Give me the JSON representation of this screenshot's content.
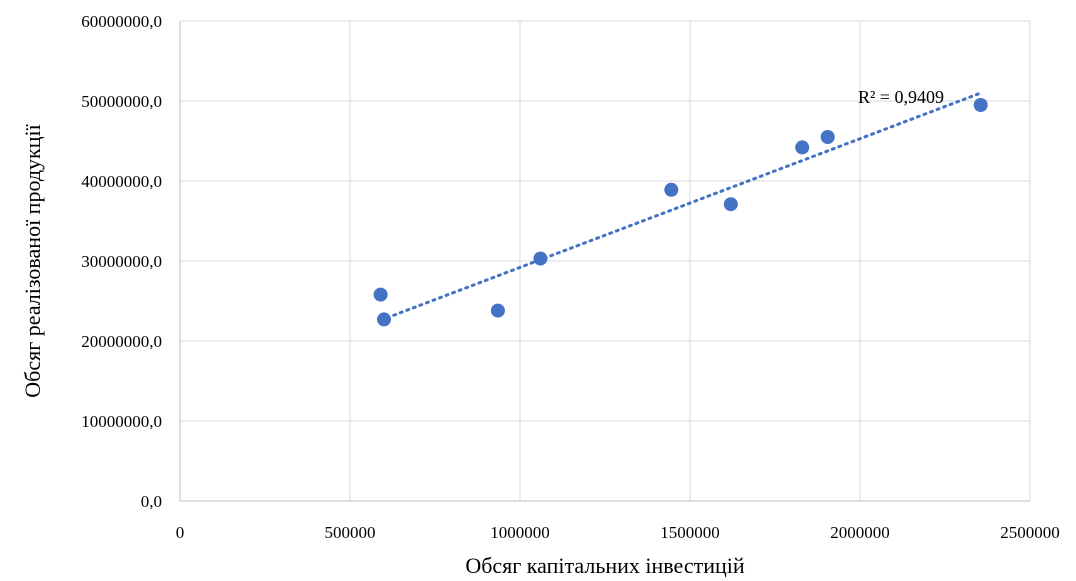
{
  "chart_data": {
    "type": "scatter",
    "xlabel": "Обсяг капітальних інвестицій",
    "ylabel": "Обсяг реалізованої продукції",
    "xlim": [
      0,
      2500000
    ],
    "ylim": [
      0,
      60000000
    ],
    "x_ticks": [
      0,
      500000,
      1000000,
      1500000,
      2000000,
      2500000
    ],
    "x_tick_labels": [
      "0",
      "500000",
      "1000000",
      "1500000",
      "2000000",
      "2500000"
    ],
    "y_ticks": [
      0,
      10000000,
      20000000,
      30000000,
      40000000,
      50000000,
      60000000
    ],
    "y_tick_labels": [
      "0,0",
      "10000000,0",
      "20000000,0",
      "30000000,0",
      "40000000,0",
      "50000000,0",
      "60000000,0"
    ],
    "grid": true,
    "series": [
      {
        "color": "#4472C4",
        "points": [
          {
            "x": 590000,
            "y": 25800000
          },
          {
            "x": 600000,
            "y": 22700000
          },
          {
            "x": 935000,
            "y": 23800000
          },
          {
            "x": 1060000,
            "y": 30300000
          },
          {
            "x": 1445000,
            "y": 38900000
          },
          {
            "x": 1620000,
            "y": 37100000
          },
          {
            "x": 1830000,
            "y": 44200000
          },
          {
            "x": 1905000,
            "y": 45500000
          },
          {
            "x": 2355000,
            "y": 49500000
          }
        ]
      }
    ],
    "trendline": {
      "type": "linear",
      "style": "dotted",
      "color": "#4472C4",
      "x_range": [
        590000,
        2355000
      ],
      "y_range": [
        22600000,
        51000000
      ],
      "r2_label": "R² = 0,9409"
    }
  }
}
